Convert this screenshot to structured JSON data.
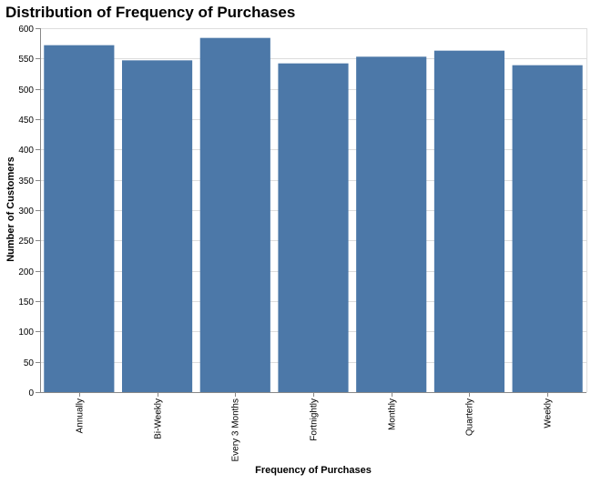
{
  "chart_data": {
    "type": "bar",
    "title": "Distribution of Frequency of Purchases",
    "xlabel": "Frequency of Purchases",
    "ylabel": "Number of Customers",
    "categories": [
      "Annually",
      "Bi-Weekly",
      "Every 3 Months",
      "Fortnightly",
      "Monthly",
      "Quarterly",
      "Weekly"
    ],
    "values": [
      572,
      547,
      584,
      542,
      553,
      563,
      539
    ],
    "ylim": [
      0,
      600
    ],
    "yticks": [
      0,
      50,
      100,
      150,
      200,
      250,
      300,
      350,
      400,
      450,
      500,
      550,
      600
    ],
    "grid": true,
    "bar_color": "#4c78a8"
  }
}
